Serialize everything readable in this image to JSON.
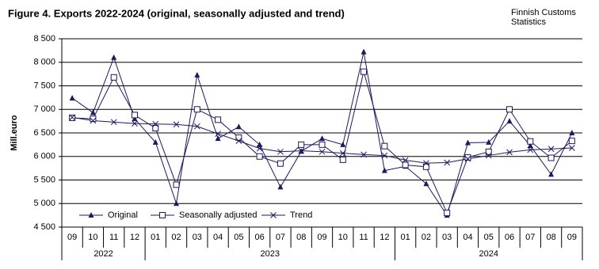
{
  "chart_data": {
    "type": "line",
    "title": "Figure 4. Exports  2022-2024  (original, seasonally adjusted and trend)",
    "source": [
      "Finnish Customs",
      "Statistics"
    ],
    "y_label": "Mill.euro",
    "categories": [
      "09",
      "10",
      "11",
      "12",
      "01",
      "02",
      "03",
      "04",
      "05",
      "06",
      "07",
      "08",
      "09",
      "10",
      "11",
      "12",
      "01",
      "02",
      "03",
      "04",
      "05",
      "06",
      "07",
      "08",
      "09"
    ],
    "category_groups": [
      {
        "label": "2022",
        "count": 4
      },
      {
        "label": "2023",
        "count": 12
      },
      {
        "label": "2024",
        "count": 9
      }
    ],
    "ylim": [
      4500,
      8500
    ],
    "yticks": [
      {
        "value": 4500,
        "label": "4 500"
      },
      {
        "value": 5000,
        "label": "5 000"
      },
      {
        "value": 5500,
        "label": "5 500"
      },
      {
        "value": 6000,
        "label": "6 000"
      },
      {
        "value": 6500,
        "label": "6 500"
      },
      {
        "value": 7000,
        "label": "7 000"
      },
      {
        "value": 7500,
        "label": "7 500"
      },
      {
        "value": 8000,
        "label": "8 000"
      },
      {
        "value": 8500,
        "label": "8 500"
      }
    ],
    "grid": true,
    "legend": "bottom-left",
    "series": [
      {
        "name": "Original",
        "color": "#1a1a5e",
        "marker": "triangle",
        "values": [
          7240,
          6930,
          8100,
          6800,
          6300,
          5000,
          7730,
          6380,
          6630,
          6250,
          5350,
          6110,
          6380,
          6250,
          8220,
          5700,
          5790,
          5420,
          4750,
          6290,
          6300,
          6750,
          6230,
          5620,
          6500
        ]
      },
      {
        "name": "Seasonally adjusted",
        "color": "#1a1a5e",
        "marker": "square",
        "values": [
          6820,
          6800,
          7680,
          6880,
          6600,
          5400,
          7000,
          6780,
          6400,
          6000,
          5850,
          6250,
          6250,
          5930,
          7800,
          6220,
          5820,
          5780,
          4800,
          5980,
          6100,
          7000,
          6320,
          5970,
          6330
        ]
      },
      {
        "name": "Trend",
        "color": "#1a1a5e",
        "marker": "cross",
        "values": [
          6830,
          6760,
          6730,
          6700,
          6690,
          6680,
          6640,
          6480,
          6330,
          6170,
          6100,
          6120,
          6100,
          6070,
          6040,
          6020,
          5920,
          5860,
          5870,
          5950,
          6020,
          6090,
          6140,
          6160,
          6180
        ]
      }
    ]
  }
}
